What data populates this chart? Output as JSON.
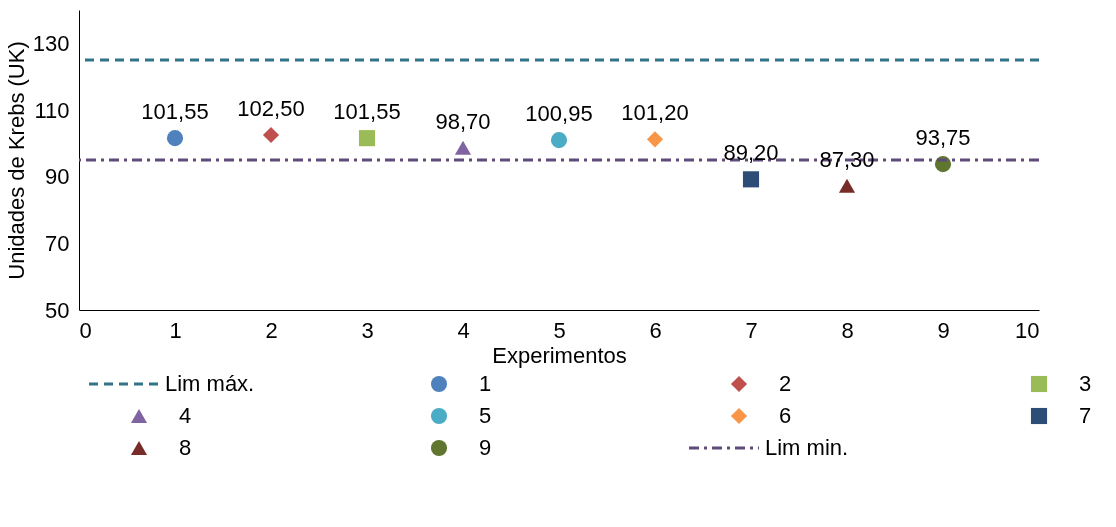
{
  "chart_data": {
    "type": "scatter",
    "xlabel": "Experimentos",
    "ylabel": "Unidades de Krebs (UK)",
    "xlim": [
      0,
      10
    ],
    "xticks": [
      0,
      1,
      2,
      3,
      4,
      5,
      6,
      7,
      8,
      9,
      10
    ],
    "ylim": [
      50,
      140
    ],
    "yticks": [
      50,
      70,
      90,
      110,
      130
    ],
    "grid": false,
    "legend": "bottom",
    "series": [
      {
        "name": "1",
        "color": "#4f81bd",
        "marker": "circle",
        "x": [
          1
        ],
        "values": [
          101.55
        ],
        "value_labels": [
          "101,55"
        ]
      },
      {
        "name": "2",
        "color": "#c0504d",
        "marker": "diamond",
        "x": [
          2
        ],
        "values": [
          102.5
        ],
        "value_labels": [
          "102,50"
        ]
      },
      {
        "name": "3",
        "color": "#9bbb59",
        "marker": "square",
        "x": [
          3
        ],
        "values": [
          101.55
        ],
        "value_labels": [
          "101,55"
        ]
      },
      {
        "name": "4",
        "color": "#8064a2",
        "marker": "triangle",
        "x": [
          4
        ],
        "values": [
          98.7
        ],
        "value_labels": [
          "98,70"
        ]
      },
      {
        "name": "5",
        "color": "#4bacc6",
        "marker": "circle",
        "x": [
          5
        ],
        "values": [
          100.95
        ],
        "value_labels": [
          "100,95"
        ]
      },
      {
        "name": "6",
        "color": "#f79646",
        "marker": "diamond",
        "x": [
          6
        ],
        "values": [
          101.2
        ],
        "value_labels": [
          "101,20"
        ]
      },
      {
        "name": "7",
        "color": "#2c4d75",
        "marker": "square",
        "x": [
          7
        ],
        "values": [
          89.2
        ],
        "value_labels": [
          "89,20"
        ]
      },
      {
        "name": "8",
        "color": "#772c2a",
        "marker": "triangle",
        "x": [
          8
        ],
        "values": [
          87.3
        ],
        "value_labels": [
          "87,30"
        ]
      },
      {
        "name": "9",
        "color": "#5f7530",
        "marker": "circle",
        "x": [
          9
        ],
        "values": [
          93.75
        ],
        "value_labels": [
          "93,75"
        ]
      }
    ],
    "ref_lines": [
      {
        "axis": "y",
        "value": 125,
        "label": "Lim máx.",
        "color": "#31748a",
        "line_style": "dashed"
      },
      {
        "axis": "y",
        "value": 95,
        "label": "Lim min.",
        "color": "#5f4b7a",
        "line_style": "dashdot"
      }
    ]
  }
}
